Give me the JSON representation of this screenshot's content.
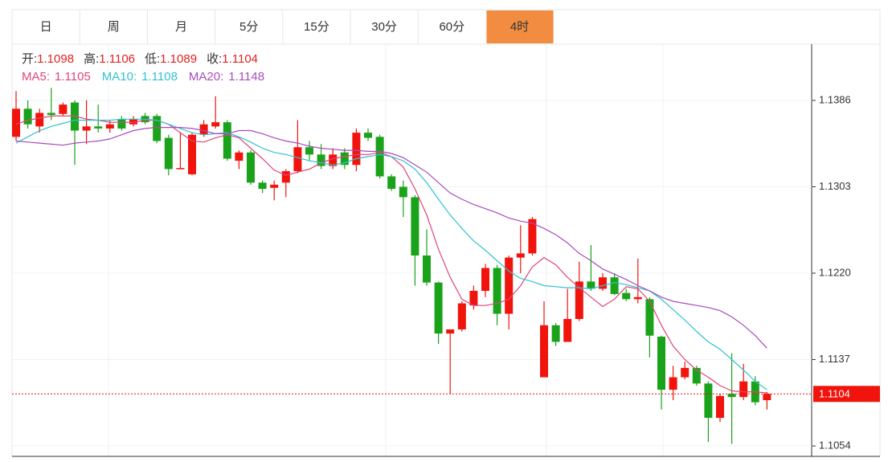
{
  "tabs": [
    "日",
    "周",
    "月",
    "5分",
    "15分",
    "30分",
    "60分",
    "4时"
  ],
  "active_tab": 7,
  "header": [
    {
      "label": "开:",
      "value": "1.1098"
    },
    {
      "label": "高:",
      "value": "1.1106"
    },
    {
      "label": "低:",
      "value": "1.1089"
    },
    {
      "label": "收:",
      "value": "1.1104"
    }
  ],
  "chart_data": {
    "type": "candlestick",
    "up_color": "#f0140c",
    "down_color": "#1aa31a",
    "ylim": [
      1.1044,
      1.144
    ],
    "yticks": [
      1.1386,
      1.1303,
      {
        "value": 1.122,
        "label": "1.1220"
      },
      1.1137,
      1.1054
    ],
    "grid": true,
    "last_price": {
      "value": 1.1104,
      "label": "1.1104"
    },
    "open": [
      1.1351,
      1.1378,
      1.1361,
      1.1374,
      1.1373,
      1.1384,
      1.1357,
      1.1361,
      1.1359,
      1.1368,
      1.1363,
      1.1371,
      1.1371,
      1.135,
      1.132,
      1.1315,
      1.1353,
      1.1361,
      1.1365,
      1.1328,
      1.1336,
      1.1307,
      1.1302,
      1.1307,
      1.1318,
      1.1341,
      1.1334,
      1.1323,
      1.1336,
      1.1324,
      1.1355,
      1.1351,
      1.1313,
      1.1303,
      1.1293,
      1.1237,
      1.1211,
      1.1162,
      1.1166,
      1.1189,
      1.1203,
      1.1225,
      1.1181,
      1.1235,
      1.1239,
      1.112,
      1.117,
      1.1154,
      1.1176,
      1.1212,
      1.1205,
      1.1216,
      1.1201,
      1.1195,
      1.1195,
      1.1159,
      1.1108,
      1.112,
      1.1129,
      1.1114,
      1.1081,
      1.1104,
      1.1101,
      1.1116,
      1.1098
    ],
    "high": [
      1.1395,
      1.1386,
      1.1378,
      1.1398,
      1.1384,
      1.1386,
      1.1386,
      1.1382,
      1.1367,
      1.1371,
      1.1371,
      1.1374,
      1.1373,
      1.1353,
      1.1355,
      1.1355,
      1.1367,
      1.139,
      1.1367,
      1.1338,
      1.1338,
      1.1309,
      1.1309,
      1.132,
      1.1367,
      1.1347,
      1.1344,
      1.134,
      1.134,
      1.1359,
      1.1359,
      1.1353,
      1.1315,
      1.1309,
      1.1295,
      1.1262,
      1.1212,
      1.1166,
      1.1193,
      1.1208,
      1.1229,
      1.1228,
      1.1237,
      1.1266,
      1.1274,
      1.1193,
      1.1172,
      1.1205,
      1.1231,
      1.1247,
      1.122,
      1.122,
      1.1205,
      1.1234,
      1.1197,
      1.116,
      1.1131,
      1.1135,
      1.1131,
      1.1116,
      1.1104,
      1.1143,
      1.1133,
      1.1121,
      1.1106
    ],
    "low": [
      1.1347,
      1.1359,
      1.1355,
      1.1367,
      1.1371,
      1.1324,
      1.1344,
      1.1355,
      1.1355,
      1.1357,
      1.1361,
      1.1363,
      1.1345,
      1.1314,
      1.132,
      1.1314,
      1.1351,
      1.1359,
      1.1328,
      1.132,
      1.1305,
      1.1297,
      1.129,
      1.1293,
      1.1316,
      1.1328,
      1.132,
      1.132,
      1.132,
      1.1318,
      1.1347,
      1.1311,
      1.1299,
      1.1274,
      1.1208,
      1.1208,
      1.1152,
      1.1104,
      1.1164,
      1.1185,
      1.1197,
      1.117,
      1.1166,
      1.122,
      1.1237,
      1.112,
      1.115,
      1.1154,
      1.1174,
      1.1203,
      1.1203,
      1.1199,
      1.1193,
      1.1191,
      1.1139,
      1.1089,
      1.1098,
      1.1118,
      1.1112,
      1.1058,
      1.1077,
      1.1056,
      1.1098,
      1.1093,
      1.1089
    ],
    "close": [
      1.1378,
      1.1363,
      1.1374,
      1.1372,
      1.1382,
      1.1357,
      1.1361,
      1.1359,
      1.1363,
      1.1359,
      1.1368,
      1.1365,
      1.1347,
      1.132,
      1.1321,
      1.1353,
      1.1363,
      1.1365,
      1.133,
      1.1336,
      1.1307,
      1.1301,
      1.1305,
      1.1318,
      1.1341,
      1.1334,
      1.1323,
      1.1334,
      1.1324,
      1.1355,
      1.135,
      1.1313,
      1.1301,
      1.1293,
      1.1237,
      1.1211,
      1.1162,
      1.1166,
      1.1191,
      1.1203,
      1.1225,
      1.1181,
      1.1235,
      1.1239,
      1.1272,
      1.117,
      1.1154,
      1.1176,
      1.1212,
      1.1205,
      1.1216,
      1.12,
      1.1195,
      1.1197,
      1.116,
      1.1108,
      1.112,
      1.1129,
      1.1114,
      1.1081,
      1.1102,
      1.1101,
      1.1116,
      1.1096,
      1.1104
    ],
    "series": [
      {
        "name": "MA5:",
        "value_label": "1.1105",
        "color": "#e0457b",
        "values": [
          1.1363,
          1.1367,
          1.1369,
          1.1371,
          1.1371,
          1.1371,
          1.1368,
          1.1367,
          1.1365,
          1.1365,
          1.1365,
          1.1367,
          1.1367,
          1.1363,
          1.1355,
          1.1347,
          1.1346,
          1.135,
          1.1353,
          1.135,
          1.134,
          1.133,
          1.1319,
          1.1314,
          1.1317,
          1.132,
          1.1326,
          1.133,
          1.1332,
          1.1334,
          1.1334,
          1.1336,
          1.1332,
          1.1322,
          1.1301,
          1.1276,
          1.1243,
          1.1216,
          1.1195,
          1.1189,
          1.1189,
          1.1191,
          1.1195,
          1.1208,
          1.1226,
          1.1235,
          1.1228,
          1.1216,
          1.1206,
          1.1197,
          1.1188,
          1.1195,
          1.1207,
          1.1205,
          1.1193,
          1.117,
          1.115,
          1.1137,
          1.1127,
          1.112,
          1.1112,
          1.1107,
          1.1106,
          1.1106,
          1.1105
        ]
      },
      {
        "name": "MA10:",
        "value_label": "1.1108",
        "color": "#2ec3d3",
        "values": [
          1.1345,
          1.1351,
          1.1357,
          1.1361,
          1.1364,
          1.1367,
          1.1367,
          1.1367,
          1.1367,
          1.1368,
          1.1368,
          1.1368,
          1.1367,
          1.1363,
          1.1359,
          1.1355,
          1.1353,
          1.1354,
          1.1355,
          1.1351,
          1.1346,
          1.134,
          1.1336,
          1.1334,
          1.1331,
          1.1328,
          1.1326,
          1.1324,
          1.1326,
          1.133,
          1.1332,
          1.1334,
          1.1332,
          1.1328,
          1.132,
          1.1307,
          1.1291,
          1.1276,
          1.1263,
          1.1251,
          1.1242,
          1.1232,
          1.1222,
          1.1215,
          1.1212,
          1.1208,
          1.1207,
          1.1206,
          1.1206,
          1.1205,
          1.1208,
          1.1211,
          1.1209,
          1.1206,
          1.1203,
          1.1195,
          1.1185,
          1.1175,
          1.1164,
          1.1154,
          1.1147,
          1.1137,
          1.1127,
          1.1116,
          1.1108
        ]
      },
      {
        "name": "MA20:",
        "value_label": "1.1148",
        "color": "#a84bbd",
        "values": [
          1.1347,
          1.1346,
          1.1345,
          1.1344,
          1.1343,
          1.1345,
          1.1346,
          1.1347,
          1.1349,
          1.1353,
          1.1357,
          1.1359,
          1.136,
          1.136,
          1.136,
          1.1359,
          1.1357,
          1.1354,
          1.1354,
          1.1357,
          1.1357,
          1.1354,
          1.135,
          1.1347,
          1.1345,
          1.1342,
          1.134,
          1.1339,
          1.1338,
          1.1338,
          1.1337,
          1.1337,
          1.1335,
          1.1331,
          1.1324,
          1.1317,
          1.1307,
          1.1297,
          1.1291,
          1.1286,
          1.1282,
          1.1278,
          1.1273,
          1.127,
          1.1268,
          1.1263,
          1.1257,
          1.1249,
          1.1239,
          1.1232,
          1.1224,
          1.1219,
          1.1214,
          1.1208,
          1.1203,
          1.1197,
          1.1193,
          1.1191,
          1.1189,
          1.1187,
          1.1184,
          1.1178,
          1.117,
          1.116,
          1.1148
        ]
      }
    ]
  }
}
